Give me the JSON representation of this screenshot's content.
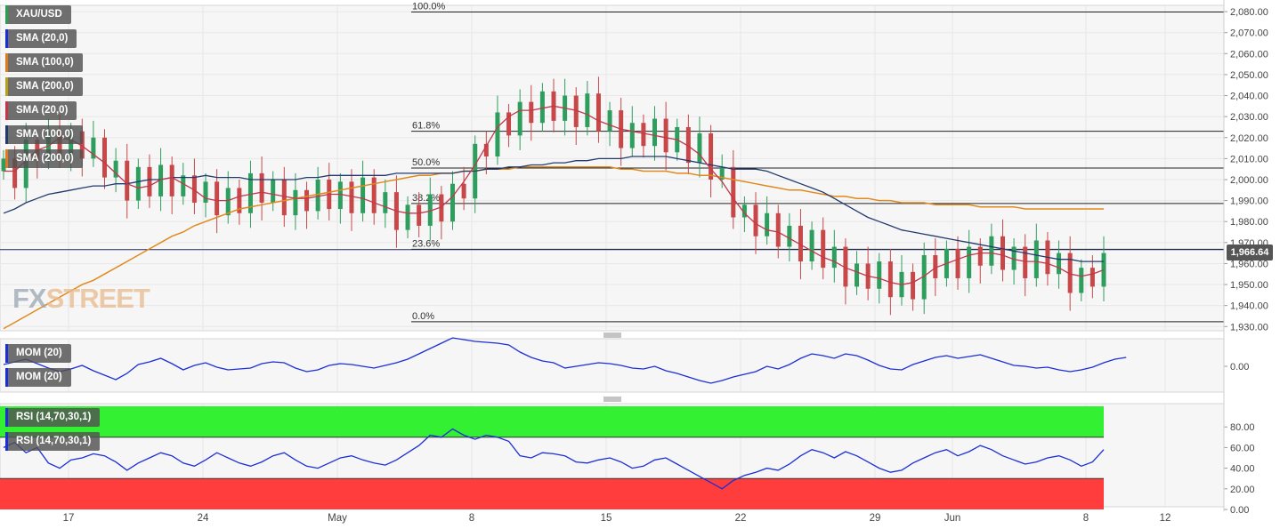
{
  "chart_data": [
    {
      "type": "candlestick",
      "symbol": "XAU/USD",
      "last_price_label": "1,966.64",
      "y_ticks": [
        "2,080.00",
        "2,070.00",
        "2,060.00",
        "2,050.00",
        "2,040.00",
        "2,030.00",
        "2,020.00",
        "2,010.00",
        "2,000.00",
        "1,990.00",
        "1,980.00",
        "1,970.00",
        "1,960.00",
        "1,950.00",
        "1,940.00",
        "1,930.00"
      ],
      "ylim": [
        1928,
        2083
      ],
      "x_ticks": [
        "17",
        "24",
        "May",
        "8",
        "15",
        "22",
        "29",
        "Jun",
        "8",
        "12"
      ],
      "indicators": [
        "SMA (20,0)",
        "SMA (100,0)",
        "SMA (200,0)",
        "SMA (20,0)",
        "SMA (100,0)",
        "SMA (200,0)"
      ],
      "fibonacci": [
        {
          "label": "100.0%",
          "value": 2079.8
        },
        {
          "label": "61.8%",
          "value": 2023.0
        },
        {
          "label": "50.0%",
          "value": 2005.5
        },
        {
          "label": "38.2%",
          "value": 1988.6
        },
        {
          "label": "23.6%",
          "value": 1966.8
        },
        {
          "label": "0.0%",
          "value": 1932.3
        }
      ],
      "current_price": 1966.64,
      "sma20": [
        2004,
        2004,
        2009,
        2014,
        2016,
        2020,
        2019,
        2016,
        2012,
        2008,
        2003,
        1998,
        1996,
        1997,
        2000,
        2001,
        1998,
        1995,
        1991,
        1990,
        1990,
        1992,
        1993,
        1994,
        1993,
        1992,
        1991,
        1991,
        1992,
        1993,
        1993,
        1992,
        1991,
        1989,
        1987,
        1985,
        1984,
        1984,
        1985,
        1987,
        1992,
        1999,
        2007,
        2016,
        2025,
        2030,
        2033,
        2033,
        2034,
        2035,
        2034,
        2033,
        2031,
        2028,
        2026,
        2024,
        2023,
        2022,
        2021,
        2020,
        2019,
        2016,
        2012,
        2005,
        1999,
        1991,
        1984,
        1979,
        1976,
        1975,
        1972,
        1969,
        1966,
        1963,
        1961,
        1958,
        1956,
        1954,
        1953,
        1951,
        1950,
        1951,
        1954,
        1958,
        1960,
        1962,
        1964,
        1965,
        1965,
        1964,
        1962,
        1961,
        1961,
        1960,
        1958,
        1955,
        1954,
        1955,
        1957
      ],
      "sma100": [
        1984,
        1986,
        1989,
        1991,
        1993,
        1994,
        1995,
        1996,
        1997,
        1997,
        1998,
        1998,
        1999,
        2000,
        2000,
        2001,
        2001,
        2001,
        2002,
        2001,
        2001,
        2001,
        2000,
        2000,
        2000,
        2000,
        2000,
        2001,
        2001,
        2002,
        2002,
        2002,
        2002,
        2002,
        2002,
        2003,
        2003,
        2003,
        2003,
        2003,
        2003,
        2004,
        2004,
        2005,
        2005,
        2006,
        2006,
        2007,
        2007,
        2008,
        2008,
        2009,
        2009,
        2010,
        2010,
        2010,
        2011,
        2011,
        2011,
        2011,
        2010,
        2009,
        2008,
        2007,
        2006,
        2005,
        2005,
        2005,
        2004,
        2002,
        2000,
        1998,
        1996,
        1994,
        1991,
        1988,
        1985,
        1982,
        1980,
        1978,
        1976,
        1975,
        1974,
        1973,
        1972,
        1971,
        1970,
        1969,
        1968,
        1967,
        1966,
        1965,
        1964,
        1963,
        1962,
        1962,
        1961,
        1961,
        1961
      ],
      "sma200": [
        1929,
        1932,
        1935,
        1938,
        1941,
        1944,
        1947,
        1950,
        1952,
        1955,
        1958,
        1961,
        1964,
        1967,
        1970,
        1973,
        1975,
        1978,
        1980,
        1982,
        1984,
        1986,
        1987,
        1988,
        1989,
        1990,
        1991,
        1992,
        1993,
        1994,
        1995,
        1996,
        1997,
        1998,
        1999,
        2000,
        2001,
        2002,
        2002,
        2003,
        2003,
        2004,
        2004,
        2005,
        2005,
        2005,
        2006,
        2006,
        2006,
        2006,
        2006,
        2006,
        2006,
        2006,
        2006,
        2005,
        2005,
        2004,
        2004,
        2004,
        2003,
        2003,
        2002,
        2002,
        2001,
        2000,
        1999,
        1998,
        1997,
        1996,
        1995,
        1995,
        1994,
        1993,
        1992,
        1992,
        1991,
        1991,
        1990,
        1990,
        1989,
        1989,
        1989,
        1988,
        1988,
        1988,
        1988,
        1987,
        1987,
        1987,
        1987,
        1986,
        1986,
        1986,
        1986,
        1986,
        1986,
        1986,
        1986
      ]
    },
    {
      "type": "line",
      "series": [
        {
          "name": "MOM (20)",
          "color": "#1b2fd6"
        }
      ],
      "y_ticks": [
        "0.00"
      ],
      "values": [
        2,
        5,
        8,
        3,
        -2,
        -6,
        -3,
        1,
        -5,
        -10,
        -15,
        -8,
        2,
        5,
        9,
        3,
        -4,
        1,
        4,
        -1,
        -4,
        -3,
        -2,
        3,
        5,
        4,
        -2,
        -6,
        -4,
        1,
        3,
        2,
        0,
        -2,
        1,
        4,
        8,
        14,
        20,
        26,
        32,
        30,
        28,
        27,
        26,
        24,
        16,
        10,
        6,
        4,
        -2,
        0,
        2,
        4,
        3,
        1,
        -2,
        -3,
        0,
        -5,
        -8,
        -12,
        -16,
        -19,
        -16,
        -12,
        -9,
        -6,
        0,
        -3,
        2,
        9,
        14,
        12,
        9,
        14,
        12,
        7,
        1,
        -3,
        -4,
        2,
        6,
        10,
        12,
        9,
        11,
        13,
        9,
        5,
        1,
        0,
        -2,
        -1,
        -4,
        -6,
        -4,
        -1,
        4,
        8,
        10
      ]
    },
    {
      "type": "line",
      "series": [
        {
          "name": "RSI (14,70,30,1)",
          "color": "#1b2fd6"
        }
      ],
      "y_ticks": [
        "80.00",
        "60.00",
        "40.00",
        "20.00",
        "0.00"
      ],
      "ylim": [
        0,
        100
      ],
      "bands": {
        "overbought": 70,
        "oversold": 30
      },
      "values": [
        60,
        65,
        55,
        60,
        45,
        40,
        48,
        50,
        54,
        52,
        46,
        38,
        45,
        50,
        55,
        52,
        45,
        42,
        48,
        55,
        50,
        45,
        42,
        46,
        52,
        55,
        48,
        42,
        40,
        45,
        50,
        52,
        48,
        45,
        43,
        48,
        55,
        62,
        72,
        70,
        78,
        72,
        68,
        72,
        70,
        66,
        52,
        50,
        55,
        54,
        52,
        46,
        45,
        48,
        50,
        46,
        40,
        42,
        48,
        50,
        44,
        38,
        32,
        26,
        20,
        28,
        33,
        36,
        40,
        38,
        44,
        52,
        58,
        55,
        50,
        56,
        52,
        46,
        40,
        36,
        38,
        45,
        50,
        55,
        58,
        52,
        56,
        62,
        58,
        52,
        48,
        44,
        46,
        50,
        52,
        48,
        42,
        46,
        58
      ]
    }
  ],
  "brand": {
    "prefix": "FX",
    "suffix": "STREET"
  }
}
